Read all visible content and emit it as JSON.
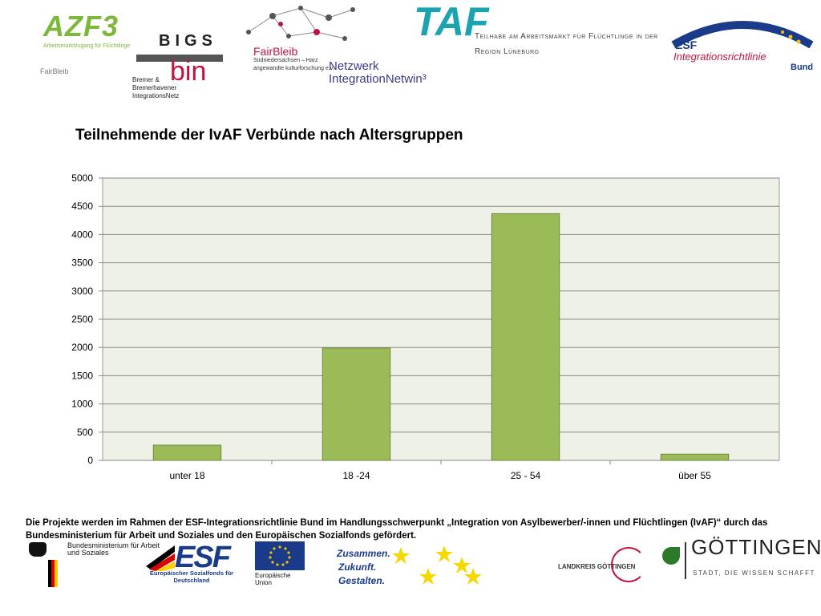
{
  "logos": {
    "azf_title": "AZF3",
    "azf_subtitle": "Arbeitsmarktzugang für Flüchtlinge",
    "azf_fairbleib": "FairBleib",
    "bigs_letters": "BIGS",
    "bigs_bin": "bin",
    "bigs_bremer": "Bremer & Bremerhavener IntegrationsNetz",
    "fairbleib_title": "FairBleib",
    "fairbleib_sub": "Südniedersachsen – Harz",
    "fairbleib_kultur": "angewandte kulturforschung e.v.",
    "netzwerk_line1": "Netzwerk",
    "netzwerk_line2": "IntegrationNetwin³",
    "taf_title": "TAF",
    "taf_sub": "Teilhabe am Arbeitsmarkt für Flüchtlinge in der Region Lüneburg",
    "esf_line1": "ESF",
    "esf_line2": "Integrationsrichtlinie",
    "esf_line3": "Bund"
  },
  "chart_data": {
    "type": "bar",
    "title": "Teilnehmende der IvAF Verbünde nach Altersgruppen",
    "categories": [
      "unter 18",
      "18 -24",
      "25 - 54",
      "über 55"
    ],
    "values": [
      270,
      1990,
      4370,
      110
    ],
    "ylim": [
      0,
      5000
    ],
    "yticks": [
      0,
      500,
      1000,
      1500,
      2000,
      2500,
      3000,
      3500,
      4000,
      4500,
      5000
    ],
    "xlabel": "",
    "ylabel": "",
    "grid": true,
    "legend": "none",
    "colors": {
      "bar": "#9bbb59",
      "bar_stroke": "#71893f",
      "plot_bg": "#eef1e6",
      "grid": "#888888"
    }
  },
  "footer": {
    "note": "Die Projekte werden im Rahmen der ESF-Integrationsrichtlinie Bund im Handlungsschwerpunkt „Integration von Asylbewerber/-innen und Flüchtlingen (IvAF)“ durch das Bundesministerium für Arbeit und Soziales und den Europäischen Sozialfonds gefördert.",
    "bmas_text": "Bundesministerium für Arbeit und Soziales",
    "esf_text": "Europäischer Sozialfonds für Deutschland",
    "eu_text": "Europäische Union",
    "zus_line1": "Zusammen.",
    "zus_line2": "Zukunft.",
    "zus_line3": "Gestalten.",
    "lk_text": "LANDKREIS GÖTTINGEN",
    "goe_title": "GÖTTINGEN",
    "goe_sub": "STADT, DIE WISSEN SCHAFFT"
  }
}
